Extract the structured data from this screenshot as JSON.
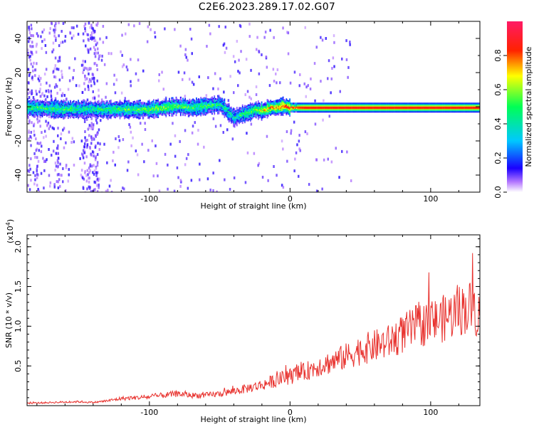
{
  "title": "C2E6.2023.289.17.02.G07",
  "chart_data": [
    {
      "type": "heatmap",
      "xlabel": "Height of straight line (km)",
      "ylabel": "Frequency (Hz)",
      "xlim": [
        -187,
        135
      ],
      "ylim": [
        -50,
        50
      ],
      "xticks": [
        -100,
        0,
        100
      ],
      "yticks": [
        -40,
        -20,
        0,
        20,
        40
      ],
      "colorbar": {
        "label": "Normalized spectral amplitude",
        "range": [
          0,
          1
        ],
        "ticks": [
          0.0,
          0.2,
          0.4,
          0.6,
          0.8
        ]
      },
      "ridge": {
        "x": [
          -187,
          -160,
          -140,
          -120,
          -100,
          -90,
          -80,
          -70,
          -60,
          -50,
          -45,
          -40,
          -35,
          -30,
          -25,
          -20,
          -15,
          -10,
          -5,
          0,
          5,
          10,
          20,
          40,
          60,
          80,
          100,
          120,
          135
        ],
        "frequency": [
          0,
          -1,
          -1,
          -1,
          -1,
          0,
          1,
          0,
          1,
          2,
          -2,
          -6,
          -4,
          -3,
          -1,
          -2,
          0,
          0,
          1,
          0,
          0,
          0,
          0,
          0,
          0,
          0,
          0,
          0,
          0
        ],
        "amplitude": [
          0.5,
          0.5,
          0.45,
          0.5,
          0.55,
          0.6,
          0.55,
          0.5,
          0.5,
          0.45,
          0.4,
          0.4,
          0.45,
          0.5,
          0.6,
          0.7,
          0.75,
          0.8,
          0.85,
          0.85,
          0.9,
          0.95,
          0.95,
          0.95,
          0.95,
          0.95,
          0.95,
          0.95,
          0.95
        ]
      }
    },
    {
      "type": "line",
      "xlabel": "Height of straight line (km)",
      "ylabel": "SNR (10 * v/v)",
      "y_multiplier": "(x10",
      "y_multiplier_exp": "4",
      "y_multiplier_close": ")",
      "xlim": [
        -187,
        135
      ],
      "ylim": [
        0,
        2.15
      ],
      "xticks": [
        -100,
        0,
        100
      ],
      "yticks": [
        0.5,
        1.0,
        1.5,
        2.0
      ],
      "series": [
        {
          "color": "#e8322e",
          "x": [
            -187,
            -170,
            -150,
            -140,
            -130,
            -120,
            -110,
            -100,
            -90,
            -80,
            -70,
            -60,
            -50,
            -40,
            -30,
            -20,
            -10,
            0,
            10,
            20,
            30,
            40,
            50,
            60,
            70,
            80,
            90,
            100,
            110,
            120,
            130,
            135
          ],
          "y": [
            0.03,
            0.04,
            0.05,
            0.04,
            0.06,
            0.09,
            0.1,
            0.11,
            0.13,
            0.15,
            0.13,
            0.13,
            0.15,
            0.18,
            0.22,
            0.26,
            0.32,
            0.37,
            0.42,
            0.5,
            0.55,
            0.62,
            0.7,
            0.75,
            0.8,
            0.9,
            1.0,
            1.05,
            1.1,
            1.2,
            1.25,
            1.1
          ]
        }
      ]
    }
  ]
}
